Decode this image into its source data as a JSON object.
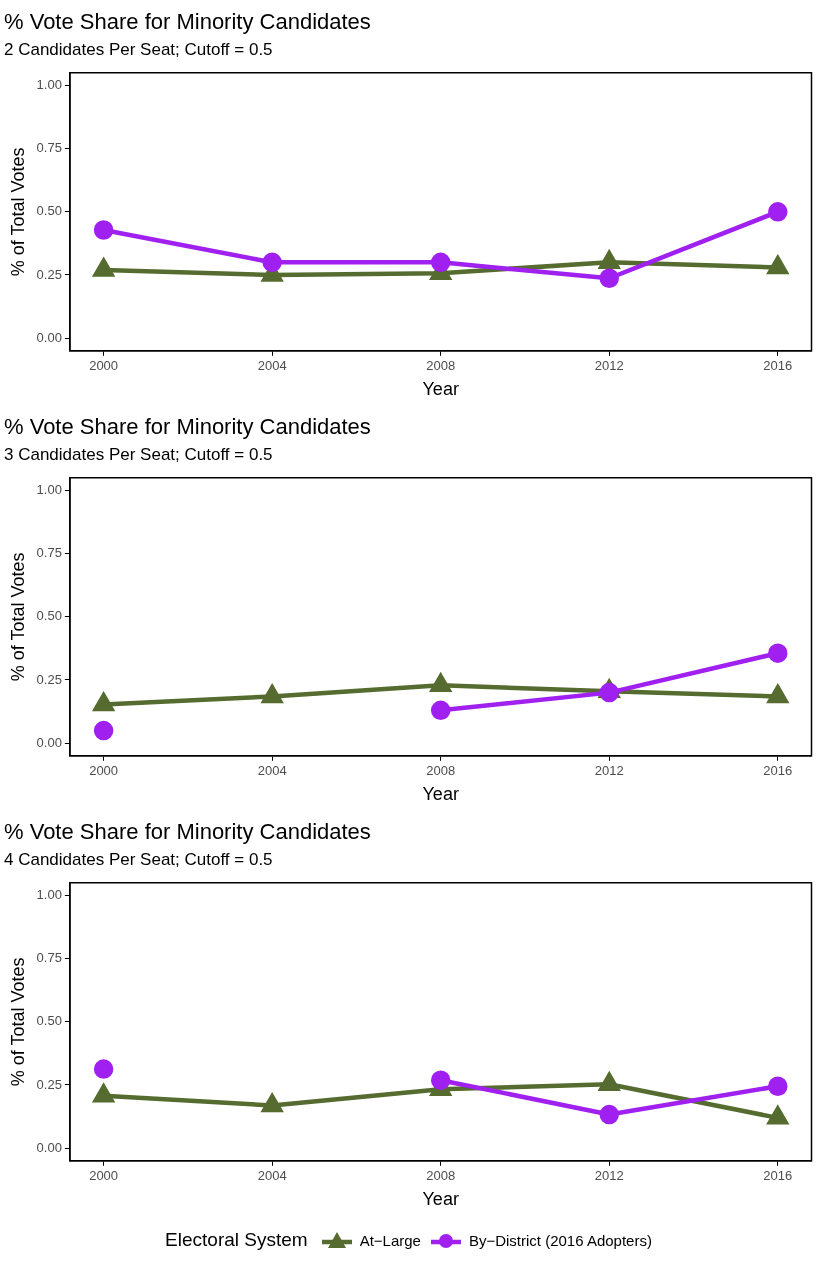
{
  "chart_data": [
    {
      "type": "line",
      "title": "% Vote Share for Minority Candidates",
      "subtitle": "2 Candidates Per Seat; Cutoff = 0.5",
      "xlabel": "Year",
      "ylabel": "% of Total Votes",
      "x": [
        2000,
        2004,
        2008,
        2012,
        2016
      ],
      "xlim": [
        1999.2,
        2016.8
      ],
      "xticks": [
        2000,
        2004,
        2008,
        2012,
        2016
      ],
      "ylim": [
        -0.05,
        1.05
      ],
      "yticks": [
        {
          "value": 0,
          "label": "0.00"
        },
        {
          "value": 0.25,
          "label": "0.25"
        },
        {
          "value": 0.5,
          "label": "0.50"
        },
        {
          "value": 0.75,
          "label": "0.75"
        },
        {
          "value": 1,
          "label": "1.00"
        }
      ],
      "grid": false,
      "legend": false,
      "series": [
        {
          "color": "#556b2f",
          "marker": "triangle",
          "values": [
            0.27,
            0.25,
            0.257,
            0.3,
            0.28
          ]
        },
        {
          "color": "#a020f0",
          "marker": "circle",
          "values": [
            0.428,
            0.3,
            0.3,
            0.237,
            0.5
          ]
        }
      ]
    },
    {
      "type": "line",
      "title": "% Vote Share for Minority Candidates",
      "subtitle": "3 Candidates Per Seat; Cutoff = 0.5",
      "xlabel": "Year",
      "ylabel": "% of Total Votes",
      "x": [
        2000,
        2004,
        2008,
        2012,
        2016
      ],
      "xlim": [
        1999.2,
        2016.8
      ],
      "xticks": [
        2000,
        2004,
        2008,
        2012,
        2016
      ],
      "ylim": [
        -0.05,
        1.05
      ],
      "yticks": [
        {
          "value": 0,
          "label": "0.00"
        },
        {
          "value": 0.25,
          "label": "0.25"
        },
        {
          "value": 0.5,
          "label": "0.50"
        },
        {
          "value": 0.75,
          "label": "0.75"
        },
        {
          "value": 1,
          "label": "1.00"
        }
      ],
      "grid": false,
      "legend": false,
      "series": [
        {
          "color": "#556b2f",
          "marker": "triangle",
          "values": [
            0.153,
            0.185,
            0.229,
            0.205,
            0.185
          ]
        },
        {
          "color": "#a020f0",
          "marker": "circle",
          "values": [
            0.05,
            null,
            0.13,
            0.2,
            0.356
          ]
        }
      ]
    },
    {
      "type": "line",
      "title": "% Vote Share for Minority Candidates",
      "subtitle": "4 Candidates Per Seat; Cutoff = 0.5",
      "xlabel": "Year",
      "ylabel": "% of Total Votes",
      "x": [
        2000,
        2004,
        2008,
        2012,
        2016
      ],
      "xlim": [
        1999.2,
        2016.8
      ],
      "xticks": [
        2000,
        2004,
        2008,
        2012,
        2016
      ],
      "ylim": [
        -0.05,
        1.05
      ],
      "yticks": [
        {
          "value": 0,
          "label": "0.00"
        },
        {
          "value": 0.25,
          "label": "0.25"
        },
        {
          "value": 0.5,
          "label": "0.50"
        },
        {
          "value": 0.75,
          "label": "0.75"
        },
        {
          "value": 1,
          "label": "1.00"
        }
      ],
      "grid": false,
      "legend": "bottom",
      "legend_title": "Electoral System",
      "series": [
        {
          "name": "At−Large",
          "color": "#556b2f",
          "marker": "triangle",
          "values": [
            0.207,
            0.169,
            0.233,
            0.253,
            0.12
          ]
        },
        {
          "name": "By−District (2016 Adopters)",
          "color": "#a020f0",
          "marker": "circle",
          "values": [
            0.313,
            null,
            0.269,
            0.133,
            0.245
          ]
        }
      ]
    }
  ]
}
